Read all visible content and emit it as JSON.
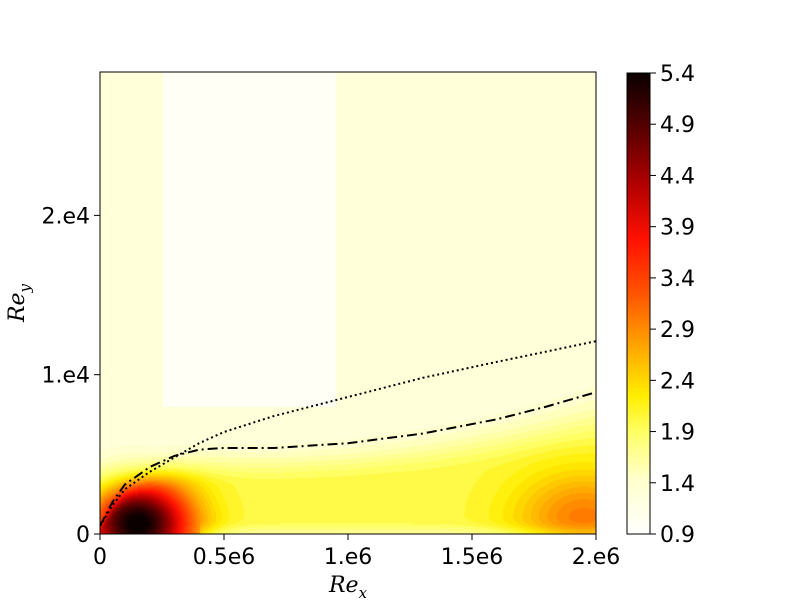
{
  "chart_data": {
    "type": "heatmap",
    "title": "",
    "xlabel": {
      "base": "Re",
      "sub": "x"
    },
    "ylabel": {
      "base": "Re",
      "sub": "y"
    },
    "xlim": [
      0,
      2000000
    ],
    "ylim": [
      0,
      29000
    ],
    "x_ticks": [
      {
        "value": 0,
        "label": "0"
      },
      {
        "value": 500000,
        "label": "0.5e6"
      },
      {
        "value": 1000000,
        "label": "1.e6"
      },
      {
        "value": 1500000,
        "label": "1.5e6"
      },
      {
        "value": 2000000,
        "label": "2.e6"
      }
    ],
    "y_ticks": [
      {
        "value": 0,
        "label": "0"
      },
      {
        "value": 10000,
        "label": "1.e4"
      },
      {
        "value": 20000,
        "label": "2.e4"
      }
    ],
    "colormap": "hot_r",
    "colorbar": {
      "range": [
        0.9,
        5.4
      ],
      "ticks": [
        "5.4",
        "4.9",
        "4.4",
        "3.9",
        "3.4",
        "2.9",
        "2.4",
        "1.9",
        "1.4",
        "0.9"
      ]
    },
    "field_features": {
      "peak": {
        "x": 150000,
        "y": 700,
        "value": 5.4
      },
      "secondary_high": {
        "x": 1950000,
        "y": 1000,
        "value": 2.9
      },
      "background_value": 1.25,
      "minimum_region": {
        "x_range": [
          250000,
          950000
        ],
        "y_range": [
          8000,
          29000
        ],
        "value": 0.9
      }
    },
    "series": [
      {
        "style": "dotted",
        "color": "#000000",
        "x": [
          0,
          50000,
          100000,
          200000,
          300000,
          400000,
          500000,
          700000,
          1000000,
          1300000,
          1600000,
          2000000
        ],
        "y": [
          500,
          1800,
          2800,
          3900,
          4800,
          5700,
          6400,
          7400,
          8600,
          9800,
          10800,
          12100
        ]
      },
      {
        "style": "dashdot",
        "color": "#000000",
        "x": [
          0,
          50000,
          100000,
          200000,
          300000,
          400000,
          500000,
          700000,
          1000000,
          1300000,
          1600000,
          1800000,
          2000000
        ],
        "y": [
          500,
          2000,
          3100,
          4200,
          4900,
          5300,
          5400,
          5400,
          5700,
          6300,
          7200,
          8000,
          8900
        ]
      }
    ]
  }
}
